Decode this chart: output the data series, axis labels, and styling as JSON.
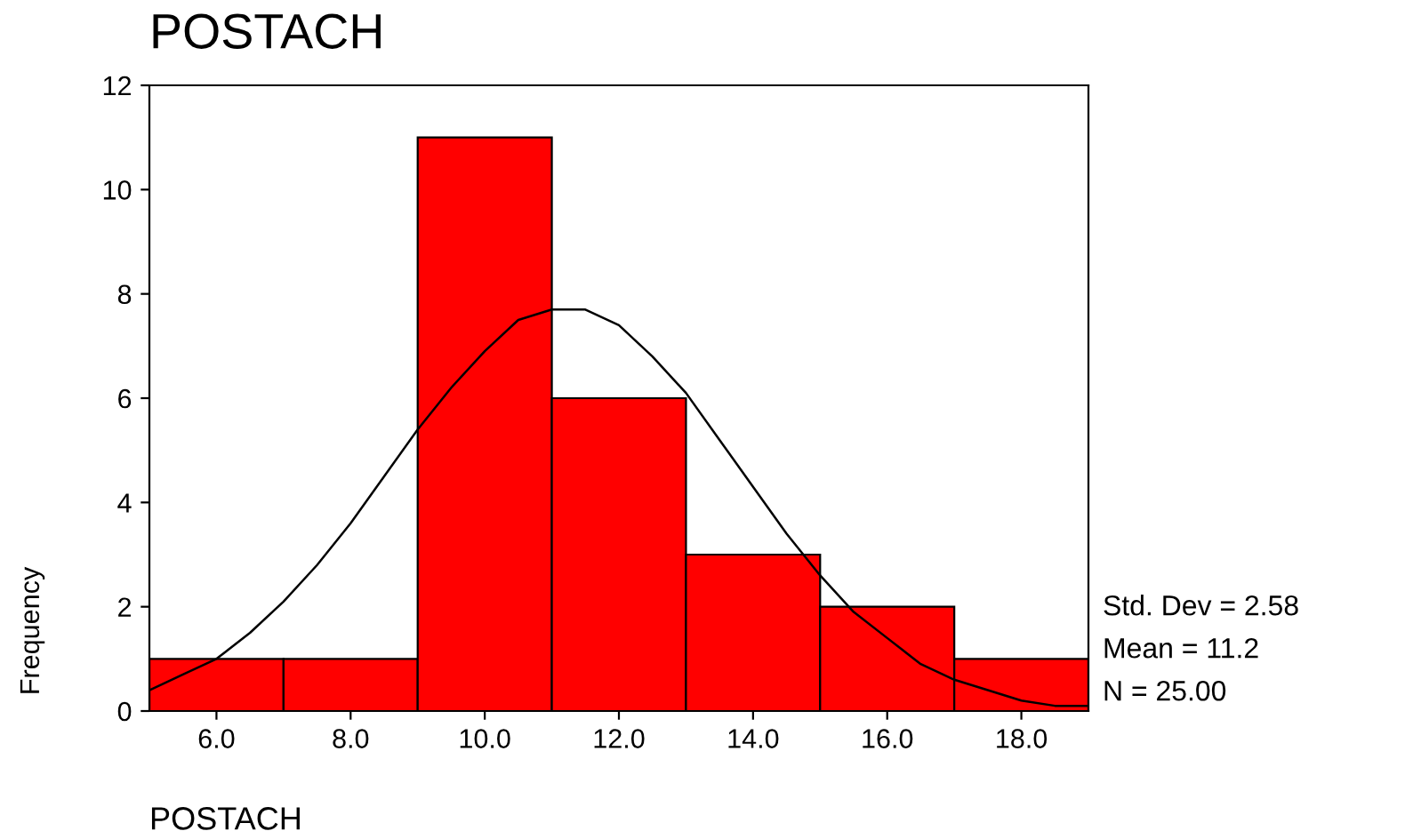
{
  "chart_data": {
    "type": "histogram",
    "title": "POSTACH",
    "xlabel": "POSTACH",
    "ylabel": "Frequency",
    "bins": [
      5,
      7,
      9,
      11,
      13,
      15,
      17,
      19
    ],
    "values": [
      1,
      1,
      11,
      6,
      3,
      2,
      1
    ],
    "color": "#ff0000",
    "series": [
      {
        "type": "line",
        "color": "#000000",
        "x": [
          5,
          5.5,
          6,
          6.5,
          7,
          7.5,
          8,
          8.5,
          9,
          9.5,
          10,
          10.5,
          11,
          11.5,
          12,
          12.5,
          13,
          13.5,
          14,
          14.5,
          15,
          15.5,
          16,
          16.5,
          17,
          17.5,
          18,
          18.5,
          19
        ],
        "values": [
          0.4,
          0.7,
          1.0,
          1.5,
          2.1,
          2.8,
          3.6,
          4.5,
          5.4,
          6.2,
          6.9,
          7.5,
          7.7,
          7.7,
          7.4,
          6.8,
          6.1,
          5.2,
          4.3,
          3.4,
          2.6,
          1.9,
          1.4,
          0.9,
          0.6,
          0.4,
          0.2,
          0.1,
          0.1
        ]
      }
    ],
    "xlim": [
      5,
      19
    ],
    "xticks": [
      {
        "value": 6,
        "label": "6.0"
      },
      {
        "value": 8,
        "label": "8.0"
      },
      {
        "value": 10,
        "label": "10.0"
      },
      {
        "value": 12,
        "label": "12.0"
      },
      {
        "value": 14,
        "label": "14.0"
      },
      {
        "value": 16,
        "label": "16.0"
      },
      {
        "value": 18,
        "label": "18.0"
      }
    ],
    "ylim": [
      0,
      12
    ],
    "yticks": [
      0,
      2,
      4,
      6,
      8,
      10,
      12
    ],
    "grid": false,
    "annotations": [
      "Std. Dev = 2.58",
      "Mean = 11.2",
      "N = 25.00"
    ]
  }
}
